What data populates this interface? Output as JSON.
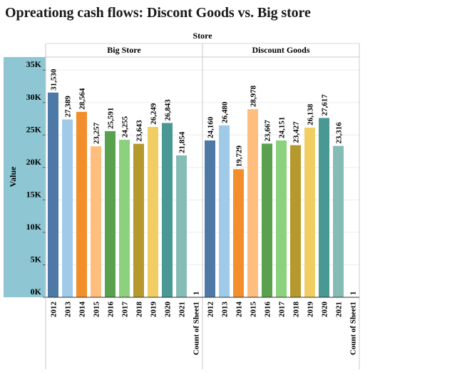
{
  "chart_data": {
    "type": "bar",
    "title": "Opreationg cash flows: Discont Goods vs. Big store",
    "column_header": "Store",
    "ylabel": "Value",
    "ylim": [
      0,
      37000
    ],
    "yticks": [
      {
        "value": 0,
        "label": "0K"
      },
      {
        "value": 5000,
        "label": "5K"
      },
      {
        "value": 10000,
        "label": "10K"
      },
      {
        "value": 15000,
        "label": "15K"
      },
      {
        "value": 20000,
        "label": "20K"
      },
      {
        "value": 25000,
        "label": "25K"
      },
      {
        "value": 30000,
        "label": "30K"
      },
      {
        "value": 35000,
        "label": "35K"
      }
    ],
    "categories": [
      "2012",
      "2013",
      "2014",
      "2015",
      "2016",
      "2017",
      "2018",
      "2019",
      "2020",
      "2021",
      "Count of Sheet1"
    ],
    "colors": [
      "#4e79a7",
      "#a0cbe8",
      "#f28e2b",
      "#ffbe7d",
      "#59a14f",
      "#8cd17d",
      "#b6992d",
      "#f1ce63",
      "#499894",
      "#86bcb6",
      "#e15759"
    ],
    "axis_band_color": "#8ec6d3",
    "panels": [
      {
        "name": "Big Store",
        "values": [
          31530,
          27389,
          28564,
          23257,
          25591,
          24255,
          23643,
          26249,
          26843,
          21854,
          1
        ],
        "labels": [
          "31,530",
          "27,389",
          "28,564",
          "23,257",
          "25,591",
          "24,255",
          "23,643",
          "26,249",
          "26,843",
          "21,854",
          "1"
        ]
      },
      {
        "name": "Discount Goods",
        "values": [
          24160,
          26480,
          19729,
          28978,
          23667,
          24151,
          23427,
          26138,
          27617,
          23316,
          1
        ],
        "labels": [
          "24,160",
          "26,480",
          "19,729",
          "28,978",
          "23,667",
          "24,151",
          "23,427",
          "26,138",
          "27,617",
          "23,316",
          "1"
        ]
      }
    ]
  }
}
